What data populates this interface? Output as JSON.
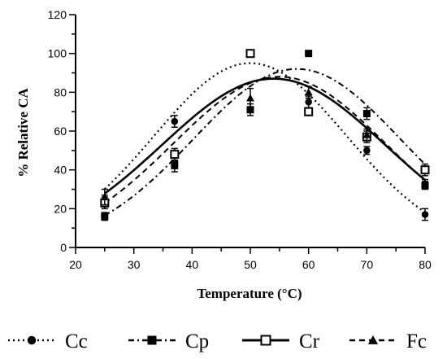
{
  "chart_data": {
    "type": "scatter",
    "title": "",
    "xlabel": "Temperature (°C)",
    "ylabel": "% Relative CA",
    "xlim": [
      20,
      80
    ],
    "ylim": [
      0,
      120
    ],
    "xticks": [
      "20",
      "30",
      "40",
      "50",
      "60",
      "70",
      "80"
    ],
    "yticks": [
      "0",
      "20",
      "40",
      "60",
      "80",
      "100",
      "120"
    ],
    "grid": false,
    "legend_position": "bottom",
    "series": [
      {
        "name": "Cc",
        "marker": "circle",
        "line_style": "dotted",
        "x": [
          25,
          37,
          50,
          60,
          70,
          80
        ],
        "y": [
          24,
          65,
          100,
          75,
          50,
          17
        ],
        "err": [
          3,
          3,
          1,
          3,
          2,
          3
        ],
        "fit": {
          "peak": 95,
          "center": 50,
          "width": 16.5
        }
      },
      {
        "name": "Cp",
        "marker": "square",
        "line_style": "dash-dot",
        "x": [
          25,
          37,
          50,
          60,
          70,
          80
        ],
        "y": [
          16,
          43,
          71,
          100,
          69,
          32
        ],
        "err": [
          2,
          2,
          3,
          1,
          3,
          2
        ],
        "fit": {
          "peak": 92,
          "center": 58,
          "width": 17.8
        }
      },
      {
        "name": "Cr",
        "marker": "open-square",
        "line_style": "solid",
        "x": [
          25,
          37,
          50,
          60,
          70,
          80
        ],
        "y": [
          23,
          48,
          100,
          70,
          57,
          40
        ],
        "err": [
          3,
          3,
          1,
          2,
          3,
          3
        ],
        "fit": {
          "peak": 87,
          "center": 54,
          "width": 19.2
        }
      },
      {
        "name": "Fc",
        "marker": "triangle",
        "line_style": "dashed",
        "x": [
          25,
          37,
          50,
          60,
          70,
          80
        ],
        "y": [
          26,
          42,
          77,
          80,
          58,
          33
        ],
        "err": [
          4,
          3,
          5,
          3,
          3,
          2
        ],
        "fit": {
          "peak": 88,
          "center": 55,
          "width": 18.3
        }
      }
    ]
  }
}
